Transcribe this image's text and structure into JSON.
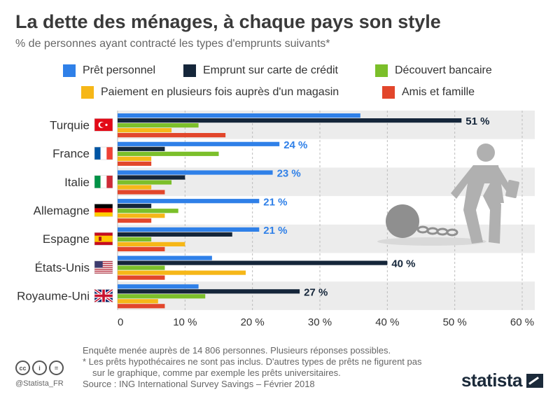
{
  "title": "La dette des ménages, à chaque pays son style",
  "subtitle": "% de personnes ayant contracté les types d'emprunts suivants*",
  "colors": {
    "pret_personnel": "#2f80e8",
    "carte_credit": "#15263a",
    "decouvert": "#7bbf2a",
    "paiement_magasin": "#f6b718",
    "amis_famille": "#e2462b"
  },
  "chart_data": {
    "type": "bar",
    "orientation": "horizontal",
    "categories": [
      "Turquie",
      "France",
      "Italie",
      "Allemagne",
      "Espagne",
      "États-Unis",
      "Royaume-Uni"
    ],
    "series": [
      {
        "name": "Prêt personnel",
        "color": "#2f80e8",
        "values": [
          36,
          24,
          23,
          21,
          21,
          14,
          12
        ]
      },
      {
        "name": "Emprunt sur carte de crédit",
        "color": "#15263a",
        "values": [
          51,
          7,
          10,
          5,
          17,
          40,
          27
        ]
      },
      {
        "name": "Découvert bancaire",
        "color": "#7bbf2a",
        "values": [
          12,
          15,
          8,
          9,
          5,
          7,
          13
        ]
      },
      {
        "name": "Paiement en plusieurs fois auprès d'un magasin",
        "color": "#f6b718",
        "values": [
          8,
          5,
          5,
          7,
          10,
          19,
          6
        ]
      },
      {
        "name": "Amis et famille",
        "color": "#e2462b",
        "values": [
          16,
          5,
          7,
          5,
          7,
          7,
          7
        ]
      }
    ],
    "value_labels": [
      "51 %",
      "24 %",
      "23 %",
      "21 %",
      "21 %",
      "40 %",
      "27 %"
    ],
    "xlim": [
      0,
      60
    ],
    "xticks": [
      "0",
      "10 %",
      "20 %",
      "30 %",
      "40 %",
      "50 %",
      "60 %"
    ],
    "grid": "vertical dashed",
    "legend_position": "top"
  },
  "notes": {
    "line1": "Enquête menée auprès de 14 806 personnes. Plusieurs réponses possibles.",
    "line2": "* Les prêts hypothécaires ne sont pas inclus. D'autres types de prêts ne figurent pas",
    "line3": "sur le graphique, comme par exemple les prêts universitaires.",
    "source": "Source : ING International Survey Savings – Février 2018"
  },
  "footer": {
    "handle": "@Statista_FR",
    "brand": "statista",
    "license_icons": [
      "cc",
      "i",
      "="
    ]
  }
}
